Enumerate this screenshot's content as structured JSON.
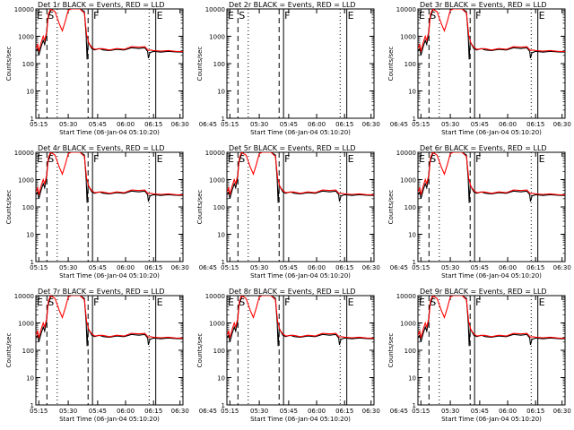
{
  "chart_data": [
    {
      "type": "line",
      "title": "Det 1r  BLACK = Events, RED = LLD",
      "xlabel": "Start Time (06-Jan-04 05:10:20)",
      "ylabel": "Counts/sec",
      "y_scale": "log",
      "ylim": [
        1,
        10000
      ],
      "x_ticks": [
        "05:15",
        "05:30",
        "05:45",
        "06:00",
        "06:15",
        "06:30",
        "06:45"
      ],
      "y_ticks": [
        "1",
        "10",
        "100",
        "1000",
        "10000"
      ],
      "markers": [
        {
          "label": "E",
          "style": "solid"
        },
        {
          "label": "S",
          "style": "dash"
        },
        {
          "label": "",
          "style": "dot"
        },
        {
          "label": "",
          "style": "dash"
        },
        {
          "label": "F",
          "style": "solid"
        },
        {
          "label": "",
          "style": "dot"
        },
        {
          "label": "E",
          "style": "solid"
        }
      ],
      "series": [
        {
          "name": "BLACK = Events",
          "color": "#000000"
        },
        {
          "name": "RED = LLD",
          "color": "#ff0000"
        }
      ]
    },
    {
      "type": "line",
      "title": "Det 2r  BLACK = Events, RED = LLD",
      "xlabel": "Start Time (06-Jan-04 05:10:20)",
      "ylabel": "Counts/sec",
      "y_scale": "log",
      "ylim": [
        1,
        10000
      ],
      "x_ticks": [
        "05:15",
        "05:30",
        "05:45",
        "06:00",
        "06:15",
        "06:30",
        "06:45"
      ],
      "y_ticks": [
        "1",
        "10",
        "100",
        "1000",
        "10000"
      ],
      "markers": [
        {
          "label": "E",
          "style": "solid"
        },
        {
          "label": "S",
          "style": "dash"
        },
        {
          "label": "",
          "style": "dot"
        },
        {
          "label": "",
          "style": "dash"
        },
        {
          "label": "F",
          "style": "solid"
        },
        {
          "label": "",
          "style": "dot"
        },
        {
          "label": "E",
          "style": "solid"
        }
      ],
      "series": []
    },
    {
      "type": "line",
      "title": "Det 3r  BLACK = Events, RED = LLD",
      "xlabel": "Start Time (06-Jan-04 05:10:20)",
      "ylabel": "Counts/sec",
      "y_scale": "log",
      "ylim": [
        1,
        10000
      ],
      "x_ticks": [
        "05:15",
        "05:30",
        "05:45",
        "06:00",
        "06:15",
        "06:30",
        "06:45"
      ],
      "y_ticks": [
        "1",
        "10",
        "100",
        "1000",
        "10000"
      ],
      "markers": [
        {
          "label": "E",
          "style": "solid"
        },
        {
          "label": "S",
          "style": "dash"
        },
        {
          "label": "",
          "style": "dot"
        },
        {
          "label": "",
          "style": "dash"
        },
        {
          "label": "F",
          "style": "solid"
        },
        {
          "label": "",
          "style": "dot"
        },
        {
          "label": "E",
          "style": "solid"
        }
      ],
      "series": [
        {
          "name": "BLACK = Events",
          "color": "#000000"
        },
        {
          "name": "RED = LLD",
          "color": "#ff0000"
        }
      ]
    },
    {
      "type": "line",
      "title": "Det 4r  BLACK = Events, RED = LLD",
      "xlabel": "Start Time (06-Jan-04 05:10:20)",
      "ylabel": "Counts/sec",
      "y_scale": "log",
      "ylim": [
        1,
        10000
      ],
      "x_ticks": [
        "05:15",
        "05:30",
        "05:45",
        "06:00",
        "06:15",
        "06:30",
        "06:45"
      ],
      "y_ticks": [
        "1",
        "10",
        "100",
        "1000",
        "10000"
      ],
      "markers": [
        {
          "label": "E",
          "style": "solid"
        },
        {
          "label": "S",
          "style": "dash"
        },
        {
          "label": "",
          "style": "dot"
        },
        {
          "label": "",
          "style": "dash"
        },
        {
          "label": "F",
          "style": "solid"
        },
        {
          "label": "",
          "style": "dot"
        },
        {
          "label": "E",
          "style": "solid"
        }
      ],
      "series": [
        {
          "name": "BLACK = Events",
          "color": "#000000"
        },
        {
          "name": "RED = LLD",
          "color": "#ff0000"
        }
      ]
    },
    {
      "type": "line",
      "title": "Det 5r  BLACK = Events, RED = LLD",
      "xlabel": "Start Time (06-Jan-04 05:10:20)",
      "ylabel": "Counts/sec",
      "y_scale": "log",
      "ylim": [
        1,
        10000
      ],
      "x_ticks": [
        "05:15",
        "05:30",
        "05:45",
        "06:00",
        "06:15",
        "06:30",
        "06:45"
      ],
      "y_ticks": [
        "1",
        "10",
        "100",
        "1000",
        "10000"
      ],
      "markers": [
        {
          "label": "E",
          "style": "solid"
        },
        {
          "label": "S",
          "style": "dash"
        },
        {
          "label": "",
          "style": "dot"
        },
        {
          "label": "",
          "style": "dash"
        },
        {
          "label": "F",
          "style": "solid"
        },
        {
          "label": "",
          "style": "dot"
        },
        {
          "label": "E",
          "style": "solid"
        }
      ],
      "series": [
        {
          "name": "BLACK = Events",
          "color": "#000000"
        },
        {
          "name": "RED = LLD",
          "color": "#ff0000"
        }
      ]
    },
    {
      "type": "line",
      "title": "Det 6r  BLACK = Events, RED = LLD",
      "xlabel": "Start Time (06-Jan-04 05:10:20)",
      "ylabel": "Counts/sec",
      "y_scale": "log",
      "ylim": [
        1,
        10000
      ],
      "x_ticks": [
        "05:15",
        "05:30",
        "05:45",
        "06:00",
        "06:15",
        "06:30",
        "06:45"
      ],
      "y_ticks": [
        "1",
        "10",
        "100",
        "1000",
        "10000"
      ],
      "markers": [
        {
          "label": "E",
          "style": "solid"
        },
        {
          "label": "S",
          "style": "dash"
        },
        {
          "label": "",
          "style": "dot"
        },
        {
          "label": "",
          "style": "dash"
        },
        {
          "label": "F",
          "style": "solid"
        },
        {
          "label": "",
          "style": "dot"
        },
        {
          "label": "E",
          "style": "solid"
        }
      ],
      "series": [
        {
          "name": "BLACK = Events",
          "color": "#000000"
        },
        {
          "name": "RED = LLD",
          "color": "#ff0000"
        }
      ]
    },
    {
      "type": "line",
      "title": "Det 7r  BLACK = Events, RED = LLD",
      "xlabel": "Start Time (06-Jan-04 05:10:20)",
      "ylabel": "Counts/sec",
      "y_scale": "log",
      "ylim": [
        1,
        10000
      ],
      "x_ticks": [
        "05:15",
        "05:30",
        "05:45",
        "06:00",
        "06:15",
        "06:30",
        "06:45"
      ],
      "y_ticks": [
        "1",
        "10",
        "100",
        "1000",
        "10000"
      ],
      "markers": [
        {
          "label": "E",
          "style": "solid"
        },
        {
          "label": "S",
          "style": "dash"
        },
        {
          "label": "",
          "style": "dot"
        },
        {
          "label": "",
          "style": "dash"
        },
        {
          "label": "F",
          "style": "solid"
        },
        {
          "label": "",
          "style": "dot"
        },
        {
          "label": "E",
          "style": "solid"
        }
      ],
      "series": [
        {
          "name": "BLACK = Events",
          "color": "#000000"
        },
        {
          "name": "RED = LLD",
          "color": "#ff0000"
        }
      ]
    },
    {
      "type": "line",
      "title": "Det 8r  BLACK = Events, RED = LLD",
      "xlabel": "Start Time (06-Jan-04 05:10:20)",
      "ylabel": "Counts/sec",
      "y_scale": "log",
      "ylim": [
        1,
        10000
      ],
      "x_ticks": [
        "05:15",
        "05:30",
        "05:45",
        "06:00",
        "06:15",
        "06:30",
        "06:45"
      ],
      "y_ticks": [
        "1",
        "10",
        "100",
        "1000",
        "10000"
      ],
      "markers": [
        {
          "label": "E",
          "style": "solid"
        },
        {
          "label": "S",
          "style": "dash"
        },
        {
          "label": "",
          "style": "dot"
        },
        {
          "label": "",
          "style": "dash"
        },
        {
          "label": "F",
          "style": "solid"
        },
        {
          "label": "",
          "style": "dot"
        },
        {
          "label": "E",
          "style": "solid"
        }
      ],
      "series": [
        {
          "name": "BLACK = Events",
          "color": "#000000"
        },
        {
          "name": "RED = LLD",
          "color": "#ff0000"
        }
      ]
    },
    {
      "type": "line",
      "title": "Det 9r  BLACK = Events, RED = LLD",
      "xlabel": "Start Time (06-Jan-04 05:10:20)",
      "ylabel": "Counts/sec",
      "y_scale": "log",
      "ylim": [
        1,
        10000
      ],
      "x_ticks": [
        "05:15",
        "05:30",
        "05:45",
        "06:00",
        "06:15",
        "06:30",
        "06:45"
      ],
      "y_ticks": [
        "1",
        "10",
        "100",
        "1000",
        "10000"
      ],
      "markers": [
        {
          "label": "E",
          "style": "solid"
        },
        {
          "label": "S",
          "style": "dash"
        },
        {
          "label": "",
          "style": "dot"
        },
        {
          "label": "",
          "style": "dash"
        },
        {
          "label": "F",
          "style": "solid"
        },
        {
          "label": "",
          "style": "dot"
        },
        {
          "label": "E",
          "style": "solid"
        }
      ],
      "series": [
        {
          "name": "BLACK = Events",
          "color": "#000000"
        },
        {
          "name": "RED = LLD",
          "color": "#ff0000"
        }
      ]
    }
  ]
}
